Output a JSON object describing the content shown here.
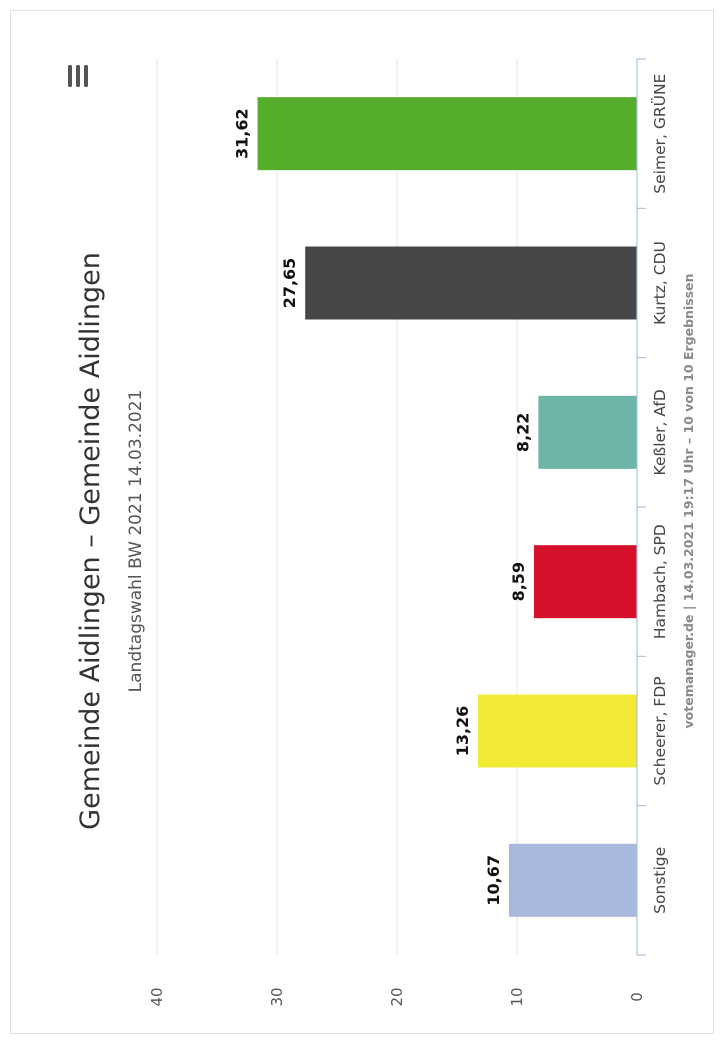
{
  "chart_data": {
    "type": "bar",
    "title": "Gemeinde Aidlingen – Gemeinde Aidlingen",
    "subtitle": "Landtagswahl BW 2021 14.03.2021",
    "credits": "votemanager.de | 14.03.2021 19:17 Uhr – 10 von 10 Ergebnissen",
    "categories": [
      "Seimer, GRÜNE",
      "Kurtz, CDU",
      "Keßler, AfD",
      "Hambach, SPD",
      "Scheerer, FDP",
      "Sonstige"
    ],
    "values": [
      31.62,
      27.65,
      8.22,
      8.59,
      13.26,
      10.67
    ],
    "value_labels": [
      "31,62",
      "27,65",
      "8,22",
      "8,59",
      "13,26",
      "10,67"
    ],
    "colors": [
      "#56ad2b",
      "#474747",
      "#6db5a6",
      "#d4102b",
      "#f3ea35",
      "#a9b9dd"
    ],
    "ylim": [
      0,
      40
    ],
    "yticks": [
      "0",
      "10",
      "20",
      "30",
      "40"
    ],
    "grid": true,
    "orientation": "rotated-90-clockwise"
  },
  "menu_icon": "hamburger-menu-icon"
}
